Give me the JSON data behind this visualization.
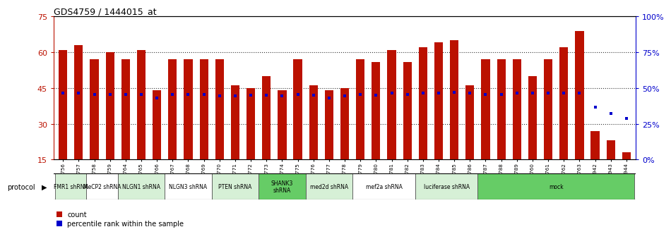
{
  "title": "GDS4759 / 1444015_at",
  "samples": [
    "GSM1145756",
    "GSM1145757",
    "GSM1145758",
    "GSM1145759",
    "GSM1145764",
    "GSM1145765",
    "GSM1145766",
    "GSM1145767",
    "GSM1145768",
    "GSM1145769",
    "GSM1145770",
    "GSM1145771",
    "GSM1145772",
    "GSM1145773",
    "GSM1145774",
    "GSM1145775",
    "GSM1145776",
    "GSM1145777",
    "GSM1145778",
    "GSM1145779",
    "GSM1145780",
    "GSM1145781",
    "GSM1145782",
    "GSM1145783",
    "GSM1145784",
    "GSM1145785",
    "GSM1145786",
    "GSM1145787",
    "GSM1145788",
    "GSM1145789",
    "GSM1145760",
    "GSM1145761",
    "GSM1145762",
    "GSM1145763",
    "GSM1145942",
    "GSM1145943",
    "GSM1145944"
  ],
  "counts": [
    61,
    63,
    57,
    60,
    57,
    61,
    44,
    57,
    57,
    57,
    57,
    46,
    45,
    50,
    44,
    57,
    46,
    44,
    45,
    57,
    56,
    61,
    56,
    62,
    64,
    65,
    46,
    57,
    57,
    57,
    50,
    57,
    62,
    69,
    27,
    23,
    18
  ],
  "percentiles": [
    46.5,
    46.5,
    45.5,
    45.5,
    45.5,
    45.5,
    43.0,
    45.5,
    45.5,
    45.5,
    44.5,
    44.5,
    45.0,
    45.0,
    44.5,
    45.5,
    45.0,
    43.0,
    44.5,
    45.5,
    45.0,
    46.5,
    45.5,
    46.5,
    46.5,
    47.0,
    46.5,
    45.5,
    45.5,
    46.5,
    46.5,
    46.5,
    46.5,
    46.5,
    36.5,
    32.0,
    29.0
  ],
  "protocols": [
    {
      "label": "FMR1 shRNA",
      "start": 0,
      "end": 2,
      "color": "#d6f0d6"
    },
    {
      "label": "MeCP2 shRNA",
      "start": 2,
      "end": 4,
      "color": "#ffffff"
    },
    {
      "label": "NLGN1 shRNA",
      "start": 4,
      "end": 7,
      "color": "#d6f0d6"
    },
    {
      "label": "NLGN3 shRNA",
      "start": 7,
      "end": 10,
      "color": "#ffffff"
    },
    {
      "label": "PTEN shRNA",
      "start": 10,
      "end": 13,
      "color": "#d6f0d6"
    },
    {
      "label": "SHANK3\nshRNA",
      "start": 13,
      "end": 16,
      "color": "#66cc66"
    },
    {
      "label": "med2d shRNA",
      "start": 16,
      "end": 19,
      "color": "#d6f0d6"
    },
    {
      "label": "mef2a shRNA",
      "start": 19,
      "end": 23,
      "color": "#ffffff"
    },
    {
      "label": "luciferase shRNA",
      "start": 23,
      "end": 27,
      "color": "#d6f0d6"
    },
    {
      "label": "mock",
      "start": 27,
      "end": 37,
      "color": "#66cc66"
    }
  ],
  "bar_color": "#bb1100",
  "dot_color": "#0000cc",
  "bar_bottom": 15,
  "ylim_left": [
    15,
    75
  ],
  "ylim_right": [
    0,
    100
  ],
  "yticks_left": [
    15,
    30,
    45,
    60,
    75
  ],
  "yticks_right": [
    0,
    25,
    50,
    75,
    100
  ],
  "grid_dotted_at": [
    30,
    45,
    60
  ]
}
